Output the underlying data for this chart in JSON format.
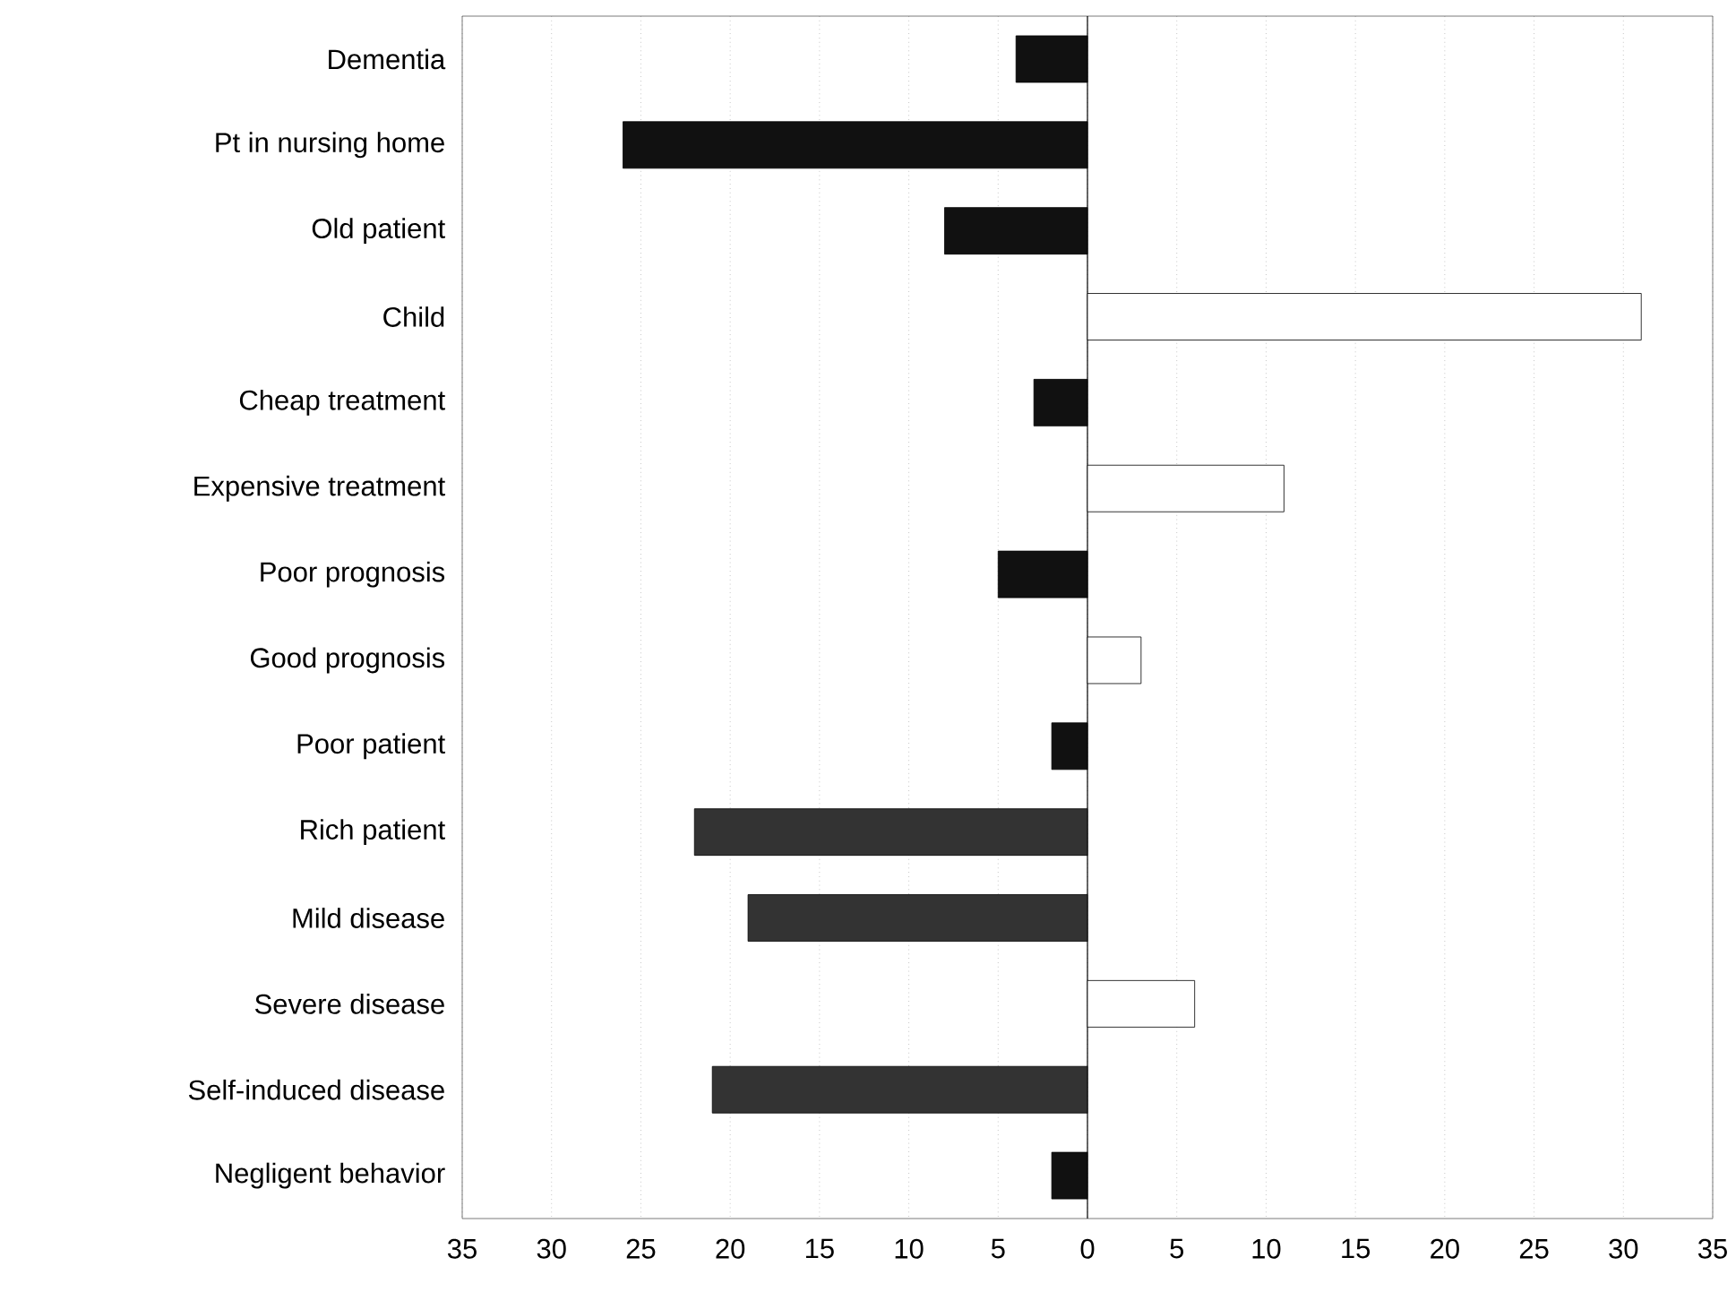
{
  "chart_data": {
    "type": "bar",
    "orientation": "horizontal",
    "categories": [
      "Dementia",
      "Pt in nursing home",
      "Old patient",
      "Child",
      "Cheap treatment",
      "Expensive treatment",
      "Poor prognosis",
      "Good prognosis",
      "Poor patient",
      "Rich patient",
      "Mild disease",
      "Severe disease",
      "Self-induced disease",
      "Negligent behavior"
    ],
    "values": [
      -4,
      -26,
      -8,
      31,
      -3,
      11,
      -5,
      3,
      -2,
      -22,
      -19,
      6,
      -21,
      -2
    ],
    "colors": [
      "#111111",
      "#111111",
      "#111111",
      "#ffffff",
      "#111111",
      "#ffffff",
      "#111111",
      "#ffffff",
      "#111111",
      "#333333",
      "#333333",
      "#ffffff",
      "#333333",
      "#111111"
    ],
    "xlim": [
      -35,
      35
    ],
    "xticks": [
      {
        "value": -35,
        "label": "35"
      },
      {
        "value": -30,
        "label": "30"
      },
      {
        "value": -25,
        "label": "25"
      },
      {
        "value": -20,
        "label": "20"
      },
      {
        "value": -15,
        "label": "15"
      },
      {
        "value": -10,
        "label": "10"
      },
      {
        "value": -5,
        "label": "5"
      },
      0,
      5,
      10,
      15,
      20,
      25,
      30,
      35
    ],
    "grid": "x"
  }
}
